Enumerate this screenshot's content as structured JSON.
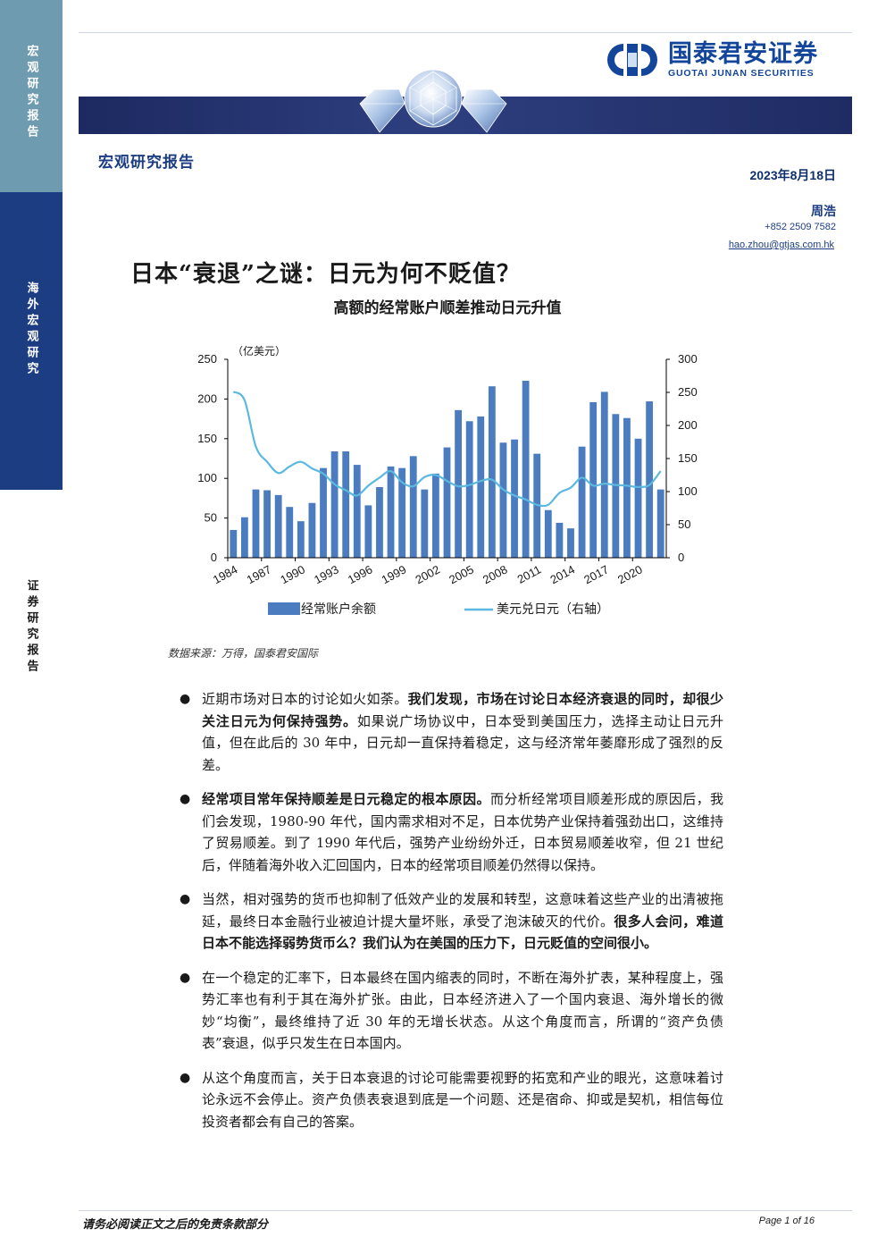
{
  "side_tabs": [
    "宏观研究报告",
    "海外宏观研究",
    "证券研究报告"
  ],
  "logo": {
    "cn": "国泰君安证券",
    "en": "GUOTAI JUNAN SECURITIES"
  },
  "colors": {
    "brand": "#13469a",
    "banner": "#1d2960",
    "bar": "#4a7cbf",
    "line": "#5bb8e0"
  },
  "header": {
    "report_type": "宏观研究报告",
    "date": "2023年8月18日",
    "author": "周浩",
    "phone": "+852 2509 7582",
    "email": "hao.zhou@gtjas.com.hk"
  },
  "title": "日本“衰退”之谜：日元为何不贬值？",
  "chart_data": {
    "type": "bar",
    "title": "高额的经常账户顺差推动日元升值",
    "unit_label": "（亿美元）",
    "categories": [
      "1984",
      "1985",
      "1986",
      "1987",
      "1988",
      "1989",
      "1990",
      "1991",
      "1992",
      "1993",
      "1994",
      "1995",
      "1996",
      "1997",
      "1998",
      "1999",
      "2000",
      "2001",
      "2002",
      "2003",
      "2004",
      "2005",
      "2006",
      "2007",
      "2008",
      "2009",
      "2010",
      "2011",
      "2012",
      "2013",
      "2014",
      "2015",
      "2016",
      "2017",
      "2018",
      "2019",
      "2020",
      "2021",
      "2022"
    ],
    "x_tick_labels": [
      "1984",
      "1987",
      "1990",
      "1993",
      "1996",
      "1999",
      "2002",
      "2005",
      "2008",
      "2011",
      "2014",
      "2017",
      "2020"
    ],
    "y_left": {
      "ticks": [
        0,
        50,
        100,
        150,
        200,
        250
      ],
      "ylim": [
        0,
        250
      ]
    },
    "y_right": {
      "ticks": [
        0,
        50,
        100,
        150,
        200,
        250,
        300
      ],
      "ylim": [
        0,
        300
      ]
    },
    "series": [
      {
        "name": "经常账户余额",
        "type": "bar",
        "axis": "left",
        "values": [
          35,
          51,
          86,
          85,
          79,
          64,
          46,
          69,
          113,
          134,
          134,
          117,
          66,
          89,
          115,
          113,
          128,
          86,
          106,
          139,
          186,
          172,
          178,
          216,
          145,
          149,
          223,
          131,
          60,
          44,
          37,
          140,
          196,
          209,
          181,
          176,
          150,
          197,
          86
        ]
      },
      {
        "name": "美元兑日元（右轴）",
        "type": "line",
        "axis": "right",
        "values": [
          251,
          238,
          168,
          145,
          128,
          138,
          145,
          135,
          127,
          111,
          102,
          94,
          109,
          121,
          131,
          114,
          108,
          122,
          125,
          116,
          108,
          110,
          116,
          118,
          103,
          94,
          88,
          80,
          80,
          98,
          106,
          121,
          109,
          112,
          110,
          109,
          107,
          110,
          131
        ]
      }
    ],
    "legend_position": "bottom",
    "grid": false
  },
  "source": "数据来源：万得，国泰君安国际",
  "bullets": [
    [
      {
        "t": "近期市场对日本的讨论如火如荼。",
        "b": false
      },
      {
        "t": "我们发现，市场在讨论日本经济衰退的同时，却很少关注日元为何保持强势。",
        "b": true
      },
      {
        "t": "如果说广场协议中，日本受到美国压力，选择主动让日元升值，但在此后的 30 年中，日元却一直保持着稳定，这与经济常年萎靡形成了强烈的反差。",
        "b": false
      }
    ],
    [
      {
        "t": "经常项目常年保持顺差是日元稳定的根本原因。",
        "b": true
      },
      {
        "t": "而分析经常项目顺差形成的原因后，我们会发现，1980-90 年代，国内需求相对不足，日本优势产业保持着强劲出口，这维持了贸易顺差。到了 1990 年代后，强势产业纷纷外迁，日本贸易顺差收窄，但 21 世纪后，伴随着海外收入汇回国内，日本的经常项目顺差仍然得以保持。",
        "b": false
      }
    ],
    [
      {
        "t": "当然，相对强势的货币也抑制了低效产业的发展和转型，这意味着这些产业的出清被拖延，最终日本金融行业被迫计提大量坏账，承受了泡沫破灭的代价。",
        "b": false
      },
      {
        "t": "很多人会问，难道日本不能选择弱势货币么？我们认为在美国的压力下，日元贬值的空间很小。",
        "b": true
      }
    ],
    [
      {
        "t": "在一个稳定的汇率下，日本最终在国内缩表的同时，不断在海外扩表，某种程度上，强势汇率也有利于其在海外扩张。由此，日本经济进入了一个国内衰退、海外增长的微妙“均衡”，最终维持了近 30 年的无增长状态。从这个角度而言，所谓的“资产负债表”衰退，似乎只发生在日本国内。",
        "b": false
      }
    ],
    [
      {
        "t": "从这个角度而言，关于日本衰退的讨论可能需要视野的拓宽和产业的眼光，这意味着讨论永远不会停止。资产负债表衰退到底是一个问题、还是宿命、抑或是契机，相信每位投资者都会有自己的答案。",
        "b": false
      }
    ]
  ],
  "footer": {
    "disclaimer": "请务必阅读正文之后的免责条款部分",
    "page": "Page 1 of 16"
  }
}
